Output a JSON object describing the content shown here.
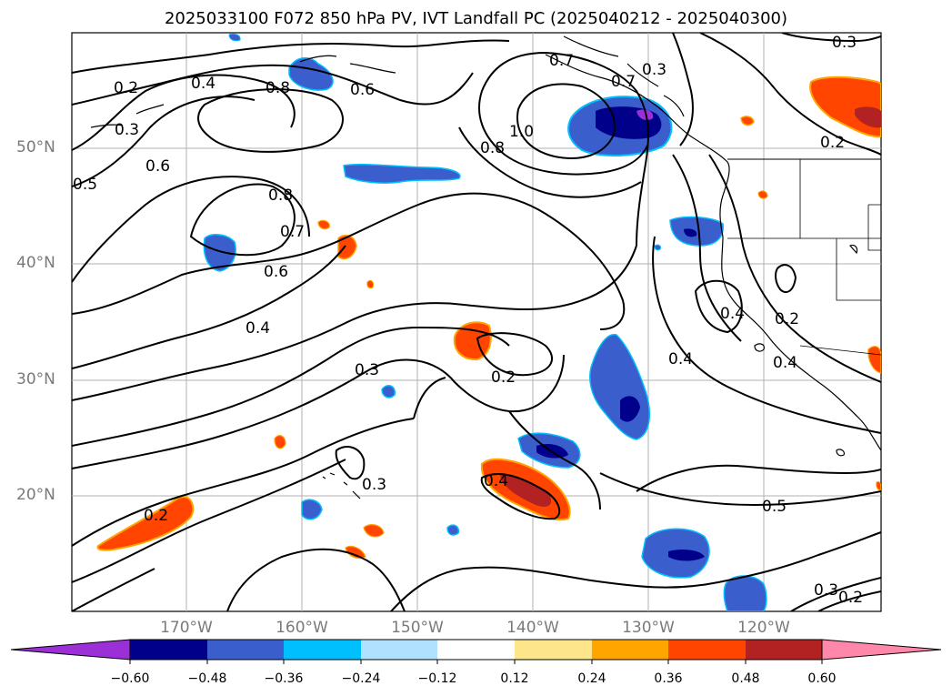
{
  "title": "2025033100 F072 850 hPa PV, IVT Landfall PC (2025040212 - 2025040300)",
  "lat_labels": [
    "50°N",
    "40°N",
    "30°N",
    "20°N"
  ],
  "lon_labels": [
    "170°W",
    "160°W",
    "150°W",
    "140°W",
    "130°W",
    "120°W"
  ],
  "contour_labels": [
    "0.2",
    "0.4",
    "0.3",
    "0.6",
    "0.5",
    "0.8",
    "0.6",
    "0.7",
    "1.0",
    "0.8",
    "0.7",
    "0.3",
    "0.8",
    "0.7",
    "0.6",
    "0.4",
    "0.3",
    "0.2",
    "0.4",
    "0.4",
    "0.2",
    "0.4",
    "0.3",
    "0.4",
    "0.2",
    "0.5",
    "0.3",
    "0.2",
    "0.3",
    "0.2"
  ],
  "colorbar": {
    "ticks": [
      "−0.60",
      "−0.48",
      "−0.36",
      "−0.24",
      "−0.12",
      "0.12",
      "0.24",
      "0.36",
      "0.48",
      "0.60"
    ],
    "colors": [
      "#9b30d9",
      "#00008b",
      "#3a5fcd",
      "#00bfff",
      "#b0e2ff",
      "#ffffff",
      "#fde68a",
      "#ffa500",
      "#ff4500",
      "#b22222",
      "#ff88aa"
    ]
  },
  "legend_colors": {
    "neg_strong": "#00008b",
    "neg_mid": "#3a5fcd",
    "neg_light": "#00bfff",
    "pos_light": "#fde68a",
    "pos_mid": "#ffa500",
    "pos_strong": "#ff4500",
    "pos_max": "#b22222"
  }
}
